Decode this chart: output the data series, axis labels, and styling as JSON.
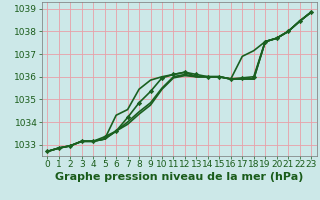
{
  "xlabel": "Graphe pression niveau de la mer (hPa)",
  "ylim": [
    1032.5,
    1039.3
  ],
  "xlim": [
    -0.5,
    23.5
  ],
  "yticks": [
    1033,
    1034,
    1035,
    1036,
    1037,
    1038,
    1039
  ],
  "xticks": [
    0,
    1,
    2,
    3,
    4,
    5,
    6,
    7,
    8,
    9,
    10,
    11,
    12,
    13,
    14,
    15,
    16,
    17,
    18,
    19,
    20,
    21,
    22,
    23
  ],
  "bg_color": "#cce8e8",
  "grid_color": "#e8a0a8",
  "series": [
    {
      "y": [
        1032.7,
        1032.85,
        1032.95,
        1033.15,
        1033.15,
        1033.25,
        1034.3,
        1034.55,
        1035.45,
        1035.85,
        1036.0,
        1036.1,
        1036.2,
        1036.0,
        1036.0,
        1036.0,
        1035.9,
        1036.9,
        1037.15,
        1037.55,
        1037.7,
        1038.0,
        1038.45,
        1038.85
      ],
      "color": "#1a6020",
      "lw": 1.2,
      "marker": false
    },
    {
      "y": [
        1032.7,
        1032.85,
        1032.95,
        1033.15,
        1033.15,
        1033.35,
        1033.6,
        1034.2,
        1034.85,
        1035.35,
        1035.95,
        1036.1,
        1036.2,
        1036.1,
        1036.0,
        1036.0,
        1035.9,
        1035.95,
        1036.0,
        1037.55,
        1037.7,
        1038.0,
        1038.45,
        1038.85
      ],
      "color": "#1a6020",
      "lw": 1.2,
      "marker": true
    },
    {
      "y": [
        1032.7,
        1032.85,
        1032.95,
        1033.15,
        1033.15,
        1033.25,
        1033.6,
        1034.0,
        1034.45,
        1034.85,
        1035.5,
        1036.0,
        1036.1,
        1036.0,
        1036.0,
        1036.0,
        1035.9,
        1035.9,
        1035.9,
        1037.55,
        1037.7,
        1038.0,
        1038.45,
        1038.85
      ],
      "color": "#1a6020",
      "lw": 1.2,
      "marker": false
    },
    {
      "y": [
        1032.7,
        1032.85,
        1032.95,
        1033.15,
        1033.15,
        1033.25,
        1033.6,
        1033.9,
        1034.35,
        1034.75,
        1035.45,
        1035.95,
        1036.05,
        1036.0,
        1036.0,
        1036.0,
        1035.9,
        1035.9,
        1035.9,
        1037.55,
        1037.7,
        1038.0,
        1038.45,
        1038.85
      ],
      "color": "#1a6020",
      "lw": 1.2,
      "marker": false
    }
  ],
  "font_color": "#1a5c1a",
  "tick_fontsize": 6.5,
  "xlabel_fontsize": 8.0
}
